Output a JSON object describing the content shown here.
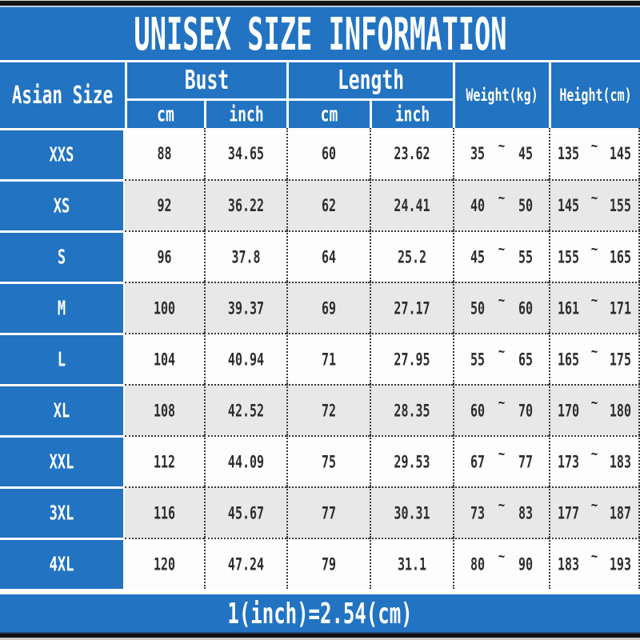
{
  "title": "UNISEX SIZE INFORMATION",
  "footer_note": "1(inch)=2.54(cm)",
  "range_separator": "~",
  "colors": {
    "accent_blue": "#2273c2",
    "row_alt_grey": "#e8e8e8",
    "row_base_white": "#fdfdfd",
    "frame_black": "#141414",
    "text_ink": "#2e2e2e"
  },
  "header": {
    "size_col": "Asian Size",
    "bust_label": "Bust",
    "length_label": "Length",
    "unit_cm": "cm",
    "unit_inch": "inch",
    "weight_label": "Weight(kg)",
    "height_label": "Height(cm)"
  },
  "rows": [
    {
      "size": "XXS",
      "bust_cm": "88",
      "bust_inch": "34.65",
      "length_cm": "60",
      "length_inch": "23.62",
      "weight_min": "35",
      "weight_max": "45",
      "height_min": "135",
      "height_max": "145"
    },
    {
      "size": "XS",
      "bust_cm": "92",
      "bust_inch": "36.22",
      "length_cm": "62",
      "length_inch": "24.41",
      "weight_min": "40",
      "weight_max": "50",
      "height_min": "145",
      "height_max": "155"
    },
    {
      "size": "S",
      "bust_cm": "96",
      "bust_inch": "37.8",
      "length_cm": "64",
      "length_inch": "25.2",
      "weight_min": "45",
      "weight_max": "55",
      "height_min": "155",
      "height_max": "165"
    },
    {
      "size": "M",
      "bust_cm": "100",
      "bust_inch": "39.37",
      "length_cm": "69",
      "length_inch": "27.17",
      "weight_min": "50",
      "weight_max": "60",
      "height_min": "161",
      "height_max": "171"
    },
    {
      "size": "L",
      "bust_cm": "104",
      "bust_inch": "40.94",
      "length_cm": "71",
      "length_inch": "27.95",
      "weight_min": "55",
      "weight_max": "65",
      "height_min": "165",
      "height_max": "175"
    },
    {
      "size": "XL",
      "bust_cm": "108",
      "bust_inch": "42.52",
      "length_cm": "72",
      "length_inch": "28.35",
      "weight_min": "60",
      "weight_max": "70",
      "height_min": "170",
      "height_max": "180"
    },
    {
      "size": "XXL",
      "bust_cm": "112",
      "bust_inch": "44.09",
      "length_cm": "75",
      "length_inch": "29.53",
      "weight_min": "67",
      "weight_max": "77",
      "height_min": "173",
      "height_max": "183"
    },
    {
      "size": "3XL",
      "bust_cm": "116",
      "bust_inch": "45.67",
      "length_cm": "77",
      "length_inch": "30.31",
      "weight_min": "73",
      "weight_max": "83",
      "height_min": "177",
      "height_max": "187"
    },
    {
      "size": "4XL",
      "bust_cm": "120",
      "bust_inch": "47.24",
      "length_cm": "79",
      "length_inch": "31.1",
      "weight_min": "80",
      "weight_max": "90",
      "height_min": "183",
      "height_max": "193"
    }
  ],
  "chart_data": {
    "type": "table",
    "title": "UNISEX SIZE INFORMATION",
    "columns": [
      "Asian Size",
      "Bust cm",
      "Bust inch",
      "Length cm",
      "Length inch",
      "Weight(kg)",
      "Height(cm)"
    ],
    "rows": [
      [
        "XXS",
        88,
        34.65,
        60,
        23.62,
        "35~45",
        "135~145"
      ],
      [
        "XS",
        92,
        36.22,
        62,
        24.41,
        "40~50",
        "145~155"
      ],
      [
        "S",
        96,
        37.8,
        64,
        25.2,
        "45~55",
        "155~165"
      ],
      [
        "M",
        100,
        39.37,
        69,
        27.17,
        "50~60",
        "161~171"
      ],
      [
        "L",
        104,
        40.94,
        71,
        27.95,
        "55~65",
        "165~175"
      ],
      [
        "XL",
        108,
        42.52,
        72,
        28.35,
        "60~70",
        "170~180"
      ],
      [
        "XXL",
        112,
        44.09,
        75,
        29.53,
        "67~77",
        "173~183"
      ],
      [
        "3XL",
        116,
        45.67,
        77,
        30.31,
        "73~83",
        "177~187"
      ],
      [
        "4XL",
        120,
        47.24,
        79,
        31.1,
        "80~90",
        "183~193"
      ]
    ],
    "note": "1(inch)=2.54(cm)"
  }
}
